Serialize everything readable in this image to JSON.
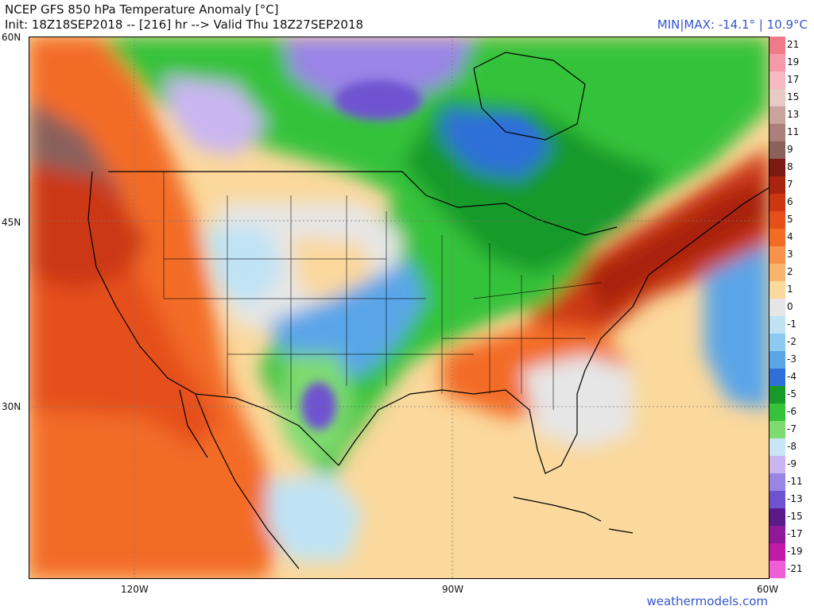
{
  "header": {
    "title": "NCEP GFS 850 hPa Temperature Anomaly [°C]",
    "init": "Init: 18Z18SEP2018 -- [216] hr --> Valid Thu 18Z27SEP2018",
    "minmax": "MIN|MAX: -14.1° | 10.9°C"
  },
  "axes": {
    "lat_labels": [
      "60N",
      "45N",
      "30N"
    ],
    "lon_labels": [
      "120W",
      "90W",
      "60W"
    ]
  },
  "scale": {
    "labels": [
      "21",
      "19",
      "17",
      "15",
      "13",
      "11",
      "9",
      "8",
      "7",
      "6",
      "5",
      "4",
      "3",
      "2",
      "1",
      "0",
      "-1",
      "-2",
      "-3",
      "-4",
      "-5",
      "-6",
      "-7",
      "-8",
      "-9",
      "-11",
      "-13",
      "-15",
      "-17",
      "-19",
      "-21"
    ],
    "colors": [
      "#f07a8a",
      "#f59aa8",
      "#f7b9c2",
      "#e8c9c4",
      "#c9a49c",
      "#a9817a",
      "#8a615b",
      "#7a1a10",
      "#a8240e",
      "#cc3712",
      "#e5501a",
      "#f36c26",
      "#f6924a",
      "#f9b46e",
      "#fbd89c",
      "#e6e6e6",
      "#bfe3f5",
      "#8ccaf0",
      "#5aa5e8",
      "#2f6fd8",
      "#179a2a",
      "#36c23a",
      "#7edb70",
      "#c9e6f7",
      "#c9b6f1",
      "#9a84e6",
      "#6f52d0",
      "#5a1a8a",
      "#8e1a9a",
      "#c21aa8",
      "#ee5ed6"
    ]
  },
  "credit": "weathermodels.com"
}
